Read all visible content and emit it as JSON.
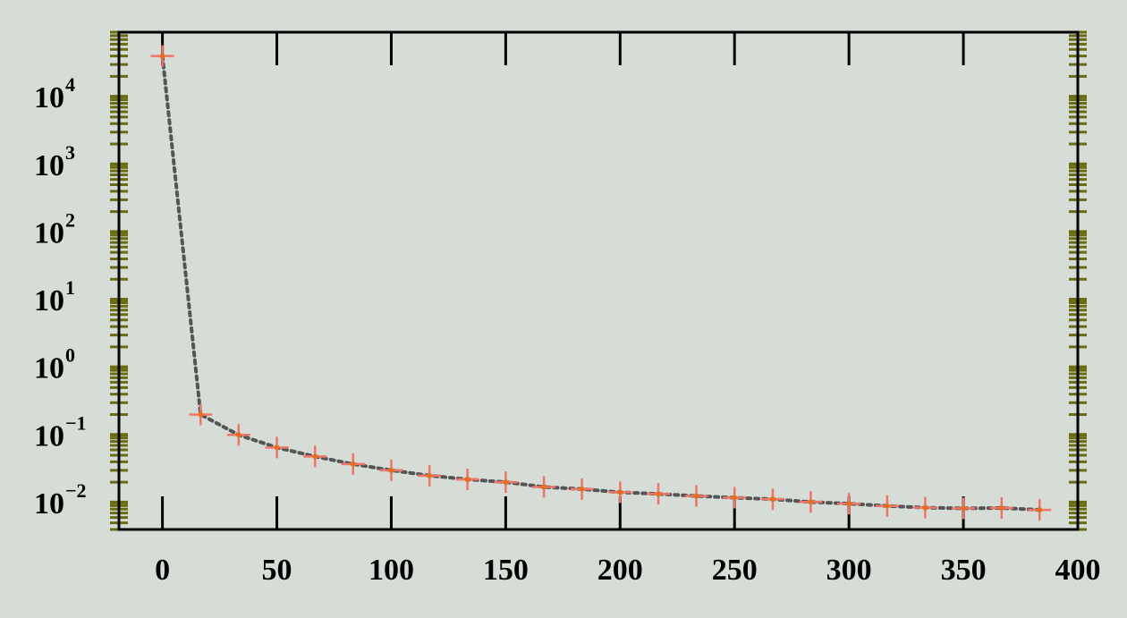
{
  "chart_data": {
    "type": "scatter",
    "title": "",
    "xlabel": "",
    "ylabel": "",
    "x_scale": "linear",
    "y_scale": "log",
    "xlim": [
      -19,
      400
    ],
    "ylim": [
      0.004,
      90000
    ],
    "x_ticks": [
      {
        "value": 0,
        "label": "0"
      },
      {
        "value": 50,
        "label": "50"
      },
      {
        "value": 100,
        "label": "100"
      },
      {
        "value": 150,
        "label": "150"
      },
      {
        "value": 200,
        "label": "200"
      },
      {
        "value": 250,
        "label": "250"
      },
      {
        "value": 300,
        "label": "300"
      },
      {
        "value": 350,
        "label": "350"
      },
      {
        "value": 400,
        "label": "400"
      }
    ],
    "y_ticks": [
      {
        "value": 0.01,
        "base": "10",
        "exponent": "−2"
      },
      {
        "value": 0.1,
        "base": "10",
        "exponent": "−1"
      },
      {
        "value": 1,
        "base": "10",
        "exponent": "0"
      },
      {
        "value": 10,
        "base": "10",
        "exponent": "1"
      },
      {
        "value": 100,
        "base": "10",
        "exponent": "2"
      },
      {
        "value": 1000,
        "base": "10",
        "exponent": "3"
      },
      {
        "value": 10000,
        "base": "10",
        "exponent": "4"
      }
    ],
    "grid": false,
    "legend": "none",
    "series": [
      {
        "marker": "plus",
        "line_style": "dotted",
        "x": [
          0,
          16.7,
          33.3,
          50,
          66.7,
          83.3,
          100,
          116.7,
          133.3,
          150,
          166.7,
          183.3,
          200,
          216.7,
          233.3,
          250,
          266.7,
          283.3,
          300,
          316.7,
          333.3,
          350,
          366.7,
          383.3
        ],
        "y": [
          40000,
          0.2,
          0.1,
          0.065,
          0.048,
          0.037,
          0.03,
          0.025,
          0.022,
          0.02,
          0.017,
          0.0158,
          0.0142,
          0.0134,
          0.0125,
          0.0118,
          0.0112,
          0.0102,
          0.0096,
          0.0089,
          0.0084,
          0.0082,
          0.0083,
          0.0078
        ]
      }
    ],
    "colors": {
      "background": "#d6dcd6",
      "axes": "#000000",
      "marker": "#f07468",
      "marker_center": "#e8701a",
      "line": "#555555",
      "minor_ticks": "#6b6b10"
    }
  }
}
